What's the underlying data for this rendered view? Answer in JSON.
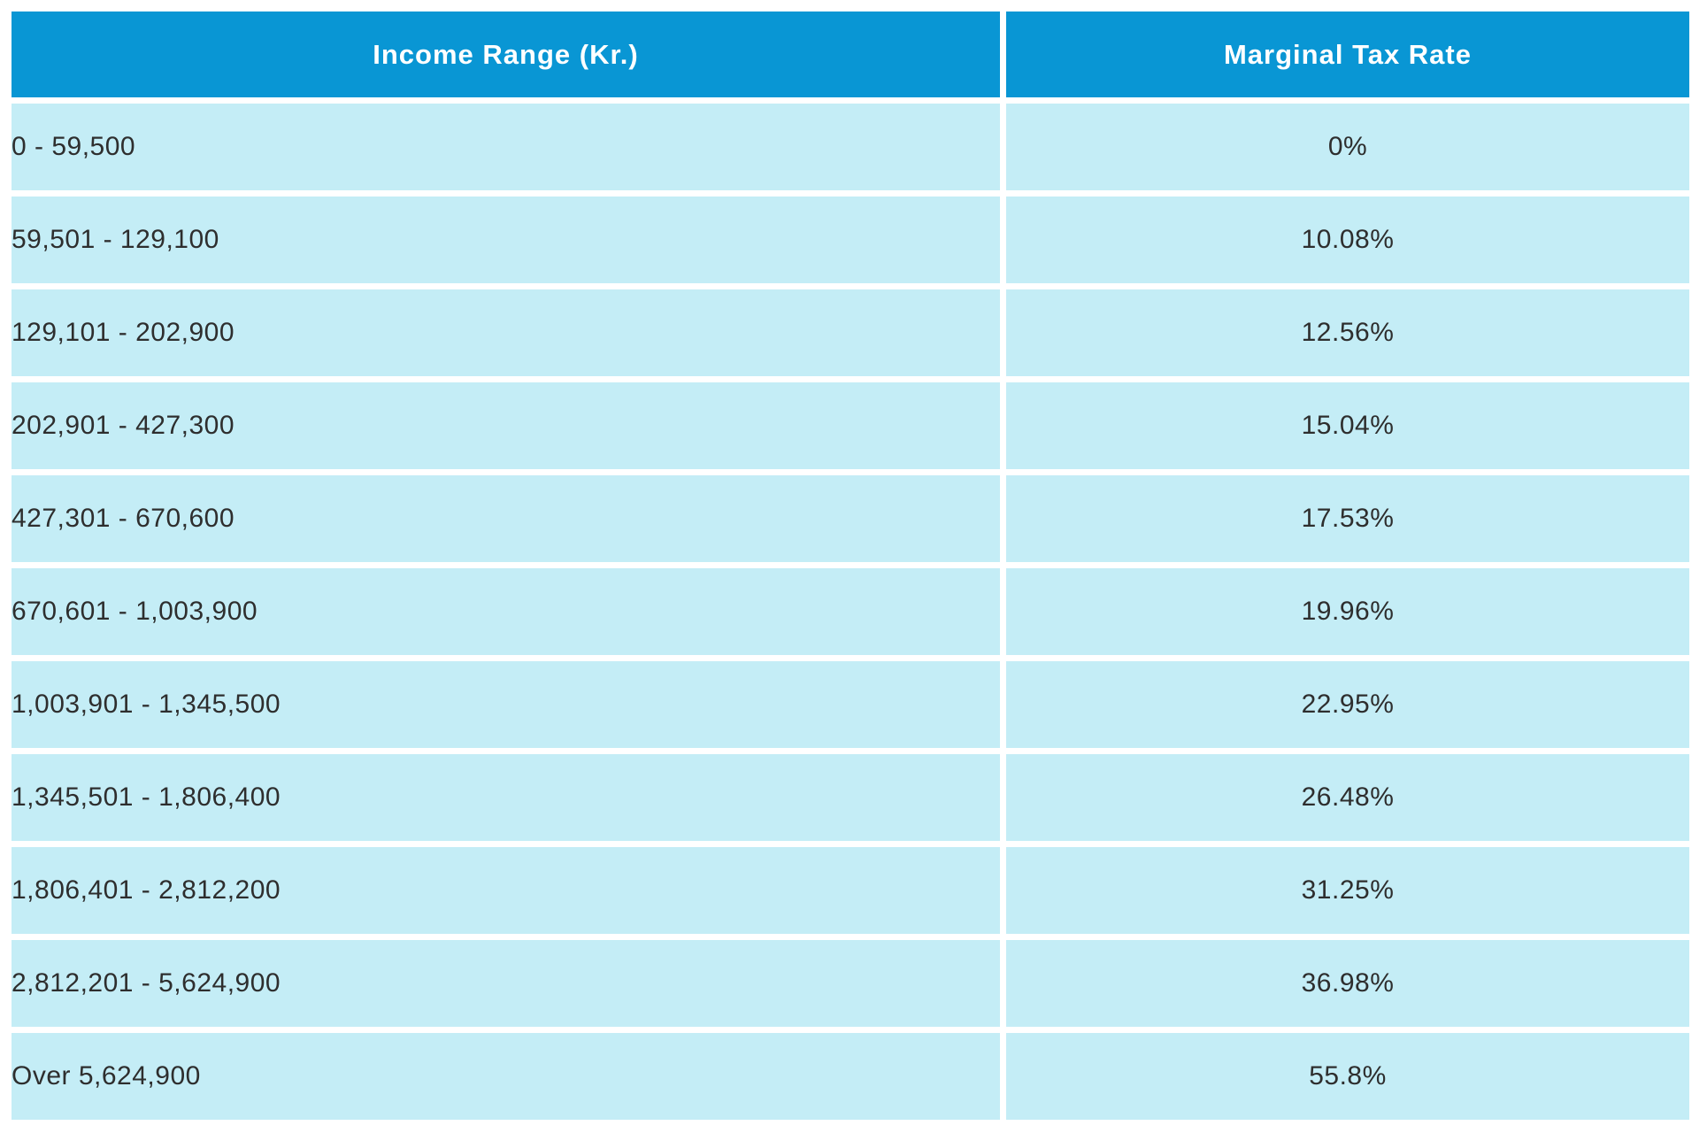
{
  "colors": {
    "header_bg": "#0996d4",
    "row_bg": "#c4edf6",
    "header_text": "#ffffff",
    "cell_text": "#2e2e2e",
    "page_bg": "#ffffff"
  },
  "table": {
    "columns": [
      {
        "label": "Income Range (Kr.)"
      },
      {
        "label": "Marginal Tax Rate"
      }
    ],
    "rows": [
      {
        "income_range": "0 - 59,500",
        "tax_rate": "0%"
      },
      {
        "income_range": "59,501 - 129,100",
        "tax_rate": "10.08%"
      },
      {
        "income_range": "129,101 - 202,900",
        "tax_rate": "12.56%"
      },
      {
        "income_range": "202,901 - 427,300",
        "tax_rate": "15.04%"
      },
      {
        "income_range": "427,301 - 670,600",
        "tax_rate": "17.53%"
      },
      {
        "income_range": "670,601 - 1,003,900",
        "tax_rate": "19.96%"
      },
      {
        "income_range": "1,003,901 - 1,345,500",
        "tax_rate": "22.95%"
      },
      {
        "income_range": "1,345,501 - 1,806,400",
        "tax_rate": "26.48%"
      },
      {
        "income_range": "1,806,401 - 2,812,200",
        "tax_rate": "31.25%"
      },
      {
        "income_range": "2,812,201 - 5,624,900",
        "tax_rate": "36.98%"
      },
      {
        "income_range": "Over 5,624,900",
        "tax_rate": "55.8%"
      }
    ]
  },
  "chart_data": {
    "type": "table",
    "title": "",
    "columns": [
      "Income Range (Kr.)",
      "Marginal Tax Rate"
    ],
    "rows": [
      [
        "0 - 59,500",
        "0%"
      ],
      [
        "59,501 - 129,100",
        "10.08%"
      ],
      [
        "129,101 - 202,900",
        "12.56%"
      ],
      [
        "202,901 - 427,300",
        "15.04%"
      ],
      [
        "427,301 - 670,600",
        "17.53%"
      ],
      [
        "670,601 - 1,003,900",
        "19.96%"
      ],
      [
        "1,003,901 - 1,345,500",
        "22.95%"
      ],
      [
        "1,345,501 - 1,806,400",
        "26.48%"
      ],
      [
        "1,806,401 - 2,812,200",
        "31.25%"
      ],
      [
        "2,812,201 - 5,624,900",
        "36.98%"
      ],
      [
        "Over 5,624,900",
        "55.8%"
      ]
    ],
    "marginal_rates_percent": [
      0,
      10.08,
      12.56,
      15.04,
      17.53,
      19.96,
      22.95,
      26.48,
      31.25,
      36.98,
      55.8
    ]
  }
}
